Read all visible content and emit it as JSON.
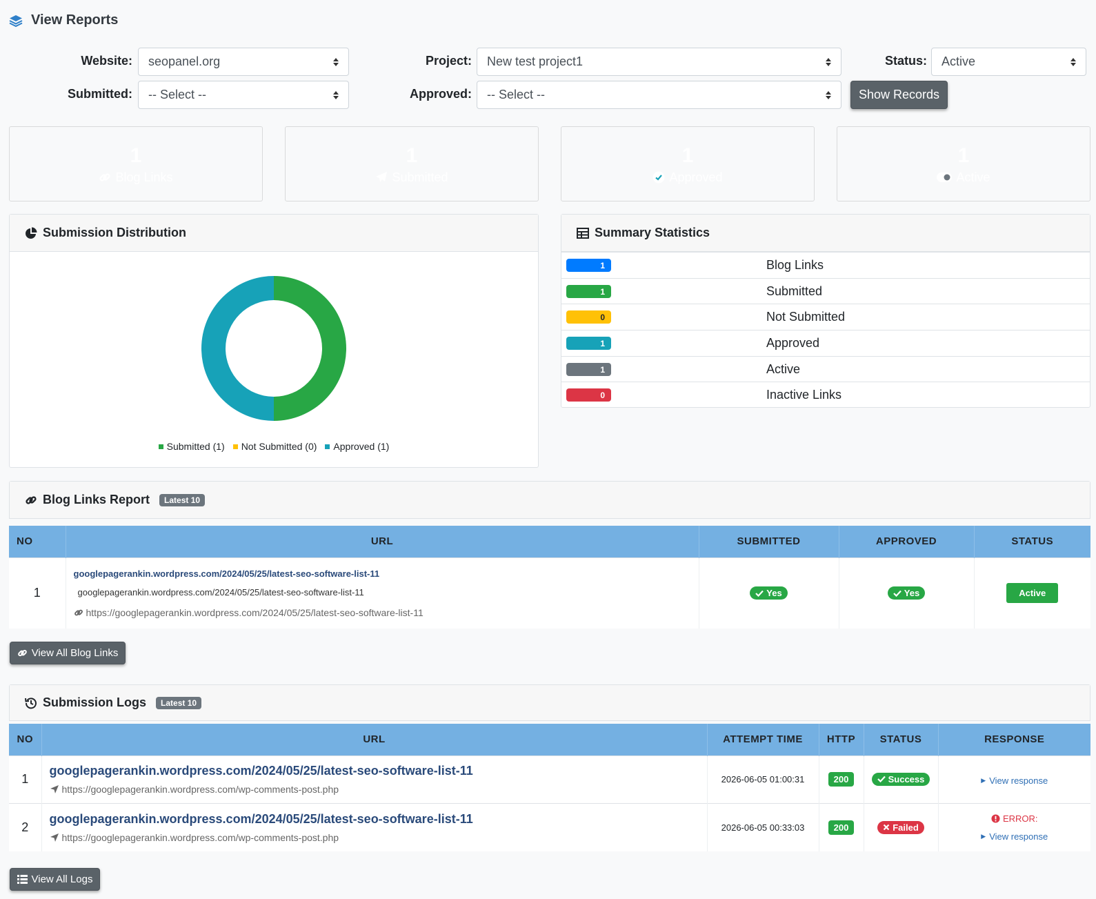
{
  "header": {
    "title": "View Reports",
    "icon": "layers-icon"
  },
  "filters": {
    "website_label": "Website:",
    "website_value": "seopanel.org",
    "project_label": "Project:",
    "project_value": "New test project1",
    "status_label": "Status:",
    "status_value": "Active",
    "submitted_label": "Submitted:",
    "submitted_value": "-- Select --",
    "approved_label": "Approved:",
    "approved_value": "-- Select --",
    "show_button": "Show Records"
  },
  "stats": [
    {
      "value": "1",
      "label": "Blog Links",
      "icon": "link-icon",
      "color": "#007bff"
    },
    {
      "value": "1",
      "label": "Submitted",
      "icon": "paper-plane-icon",
      "color": "#28a745"
    },
    {
      "value": "1",
      "label": "Approved",
      "icon": "check-circle-icon",
      "color": "#17a2b8"
    },
    {
      "value": "1",
      "label": "Active",
      "icon": "toggle-on-icon",
      "color": "#6c757d"
    }
  ],
  "distribution": {
    "title": "Submission Distribution",
    "legend": [
      {
        "label": "Submitted (1)",
        "color": "#28a745"
      },
      {
        "label": "Not Submitted (0)",
        "color": "#ffc107"
      },
      {
        "label": "Approved (1)",
        "color": "#17a2b8"
      }
    ]
  },
  "chart_data": {
    "type": "pie",
    "categories": [
      "Submitted",
      "Not Submitted",
      "Approved"
    ],
    "values": [
      1,
      0,
      1
    ],
    "colors": [
      "#28a745",
      "#ffc107",
      "#17a2b8"
    ],
    "title": "",
    "legend": "bottom"
  },
  "summary": {
    "title": "Summary Statistics",
    "rows": [
      {
        "value": "1",
        "label": "Blog Links",
        "color": "#007bff"
      },
      {
        "value": "1",
        "label": "Submitted",
        "color": "#28a745"
      },
      {
        "value": "0",
        "label": "Not Submitted",
        "color": "#ffc107"
      },
      {
        "value": "1",
        "label": "Approved",
        "color": "#17a2b8"
      },
      {
        "value": "1",
        "label": "Active",
        "color": "#6c757d"
      },
      {
        "value": "0",
        "label": "Inactive Links",
        "color": "#dc3545"
      }
    ]
  },
  "blog_report": {
    "title": "Blog Links Report",
    "badge": "Latest 10",
    "columns": [
      "NO",
      "URL",
      "SUBMITTED",
      "APPROVED",
      "STATUS"
    ],
    "rows": [
      {
        "no": "1",
        "title": "googlepagerankin.wordpress.com/2024/05/25/latest-seo-software-list-11",
        "subtitle": "googlepagerankin.wordpress.com/2024/05/25/latest-seo-software-list-11",
        "url": "https://googlepagerankin.wordpress.com/2024/05/25/latest-seo-software-list-11",
        "submitted": "Yes",
        "approved": "Yes",
        "status": "Active"
      }
    ],
    "view_all": "View All Blog Links"
  },
  "logs": {
    "title": "Submission Logs",
    "badge": "Latest 10",
    "columns": [
      "NO",
      "URL",
      "ATTEMPT TIME",
      "HTTP",
      "STATUS",
      "RESPONSE"
    ],
    "rows": [
      {
        "no": "1",
        "title": "googlepagerankin.wordpress.com/2024/05/25/latest-seo-software-list-11",
        "url": "https://googlepagerankin.wordpress.com/wp-comments-post.php",
        "time": "2026-06-05 01:00:31",
        "http": "200",
        "status": "Success",
        "error": "",
        "response": "View response"
      },
      {
        "no": "2",
        "title": "googlepagerankin.wordpress.com/2024/05/25/latest-seo-software-list-11",
        "url": "https://googlepagerankin.wordpress.com/wp-comments-post.php",
        "time": "2026-06-05 00:33:03",
        "http": "200",
        "status": "Failed",
        "error": "ERROR:",
        "response": "View response"
      }
    ],
    "view_all": "View All Logs"
  }
}
